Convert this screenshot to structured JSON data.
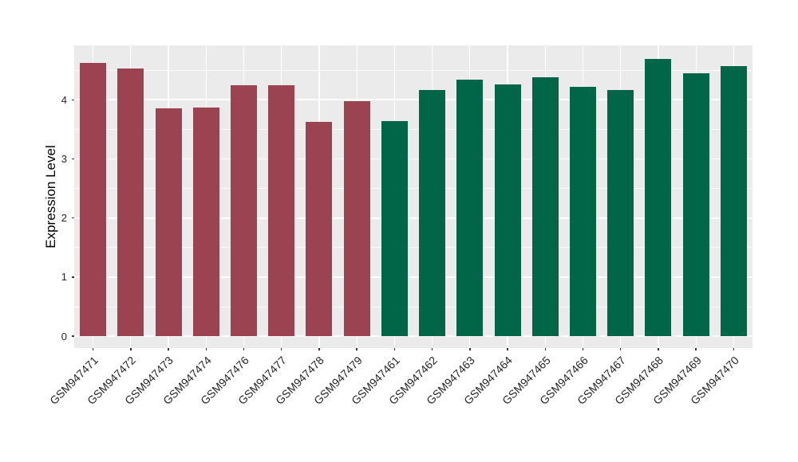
{
  "figure": {
    "background": "#FFFFFF"
  },
  "chart_data": {
    "type": "bar",
    "title": "",
    "xlabel": "",
    "ylabel": "Expression Level",
    "categories": [
      "GSM947471",
      "GSM947472",
      "GSM947473",
      "GSM947474",
      "GSM947476",
      "GSM947477",
      "GSM947478",
      "GSM947479",
      "GSM947461",
      "GSM947462",
      "GSM947463",
      "GSM947464",
      "GSM947465",
      "GSM947466",
      "GSM947467",
      "GSM947468",
      "GSM947469",
      "GSM947470"
    ],
    "values": [
      4.62,
      4.53,
      3.85,
      3.87,
      4.24,
      4.25,
      3.62,
      3.98,
      3.64,
      4.16,
      4.34,
      4.26,
      4.38,
      4.22,
      4.17,
      4.69,
      4.45,
      4.57
    ],
    "bar_colors": [
      "#9C4351",
      "#9C4351",
      "#9C4351",
      "#9C4351",
      "#9C4351",
      "#9C4351",
      "#9C4351",
      "#9C4351",
      "#006647",
      "#006647",
      "#006647",
      "#006647",
      "#006647",
      "#006647",
      "#006647",
      "#006647",
      "#006647",
      "#006647"
    ],
    "groups": [
      {
        "name": "left-group",
        "color": "#9C4351",
        "count": 8
      },
      {
        "name": "right-group",
        "color": "#006647",
        "count": 10
      }
    ],
    "ylim": [
      -0.2,
      4.92
    ],
    "yticks": [
      0,
      1,
      2,
      3,
      4
    ],
    "yticks_minor": [
      0.5,
      1.5,
      2.5,
      3.5,
      4.5
    ],
    "grid": "on",
    "legend": "none",
    "panel_background": "#EBEBEB",
    "grid_color": "#FFFFFF",
    "tick_color": "#333333",
    "axis_text_color": "#262626"
  }
}
